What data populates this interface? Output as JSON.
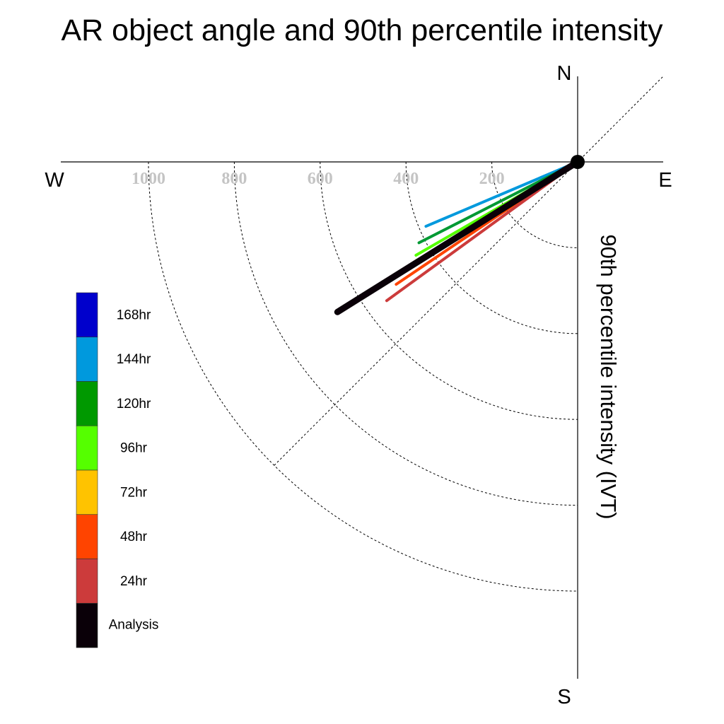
{
  "chart_data": {
    "type": "line",
    "title": "AR object angle and 90th percentile intensity",
    "ylabel": "90th percentile intensity (IVT)",
    "directions": {
      "north": "N",
      "south": "S",
      "west": "W",
      "east": "E"
    },
    "radial_ticks": [
      "1000",
      "800",
      "600",
      "400",
      "200"
    ],
    "radial_tick_values": [
      1000,
      800,
      600,
      400,
      200
    ],
    "radial_range": [
      0,
      1200
    ],
    "grid": true,
    "legend_position": "left",
    "series": [
      {
        "name": "144hr",
        "color": "#0099dd",
        "angle_deg": 203,
        "intensity": 384
      },
      {
        "name": "120hr",
        "color": "#009933",
        "angle_deg": 207,
        "intensity": 415
      },
      {
        "name": "96hr",
        "color": "#55ff00",
        "angle_deg": 210,
        "intensity": 435
      },
      {
        "name": "48hr",
        "color": "#ff4400",
        "angle_deg": 214,
        "intensity": 510
      },
      {
        "name": "24hr",
        "color": "#cc3b3b",
        "angle_deg": 216,
        "intensity": 550
      },
      {
        "name": "Analysis",
        "color": "#0a0008",
        "angle_deg": 212,
        "intensity": 660
      }
    ],
    "legend": [
      {
        "label": "168hr",
        "color": "#0000cc"
      },
      {
        "label": "144hr",
        "color": "#0099dd"
      },
      {
        "label": "120hr",
        "color": "#009900"
      },
      {
        "label": "96hr",
        "color": "#55ff00"
      },
      {
        "label": "72hr",
        "color": "#ffc300"
      },
      {
        "label": "48hr",
        "color": "#ff4400"
      },
      {
        "label": "24hr",
        "color": "#cc3b3b"
      },
      {
        "label": "Analysis",
        "color": "#0a0008"
      }
    ]
  }
}
